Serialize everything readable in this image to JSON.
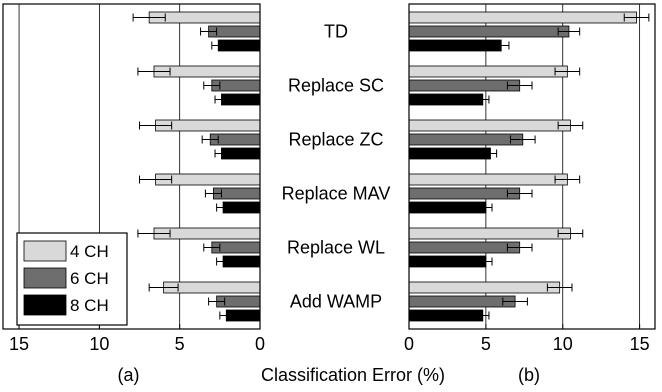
{
  "chart_data": [
    {
      "panel_label": "(a)",
      "type": "bar",
      "orientation": "horizontal",
      "x_direction": "reversed",
      "xlim": [
        0,
        16
      ],
      "xticks": [
        "15",
        "10",
        "5",
        "0"
      ],
      "xtick_values": [
        15,
        10,
        5,
        0
      ],
      "gridlines_x": [
        15,
        10,
        5
      ],
      "categories": [
        "TD",
        "Replace SC",
        "Replace ZC",
        "Replace MAV",
        "Replace WL",
        "Add WAMP"
      ],
      "series": [
        {
          "name": "4 CH",
          "color": "#d9d9d9",
          "values": [
            6.9,
            6.6,
            6.5,
            6.5,
            6.6,
            6.0
          ],
          "errors": [
            1.0,
            1.0,
            1.0,
            1.0,
            1.0,
            0.9
          ]
        },
        {
          "name": "6 CH",
          "color": "#6e6e6e",
          "values": [
            3.2,
            3.0,
            3.1,
            2.9,
            3.0,
            2.7
          ],
          "errors": [
            0.5,
            0.5,
            0.5,
            0.5,
            0.5,
            0.5
          ]
        },
        {
          "name": "8 CH",
          "color": "#000000",
          "values": [
            2.6,
            2.4,
            2.4,
            2.3,
            2.3,
            2.1
          ],
          "errors": [
            0.4,
            0.4,
            0.4,
            0.4,
            0.4,
            0.4
          ]
        }
      ],
      "legend": "bottom-left",
      "grid": true
    },
    {
      "panel_label": "(b)",
      "type": "bar",
      "orientation": "horizontal",
      "xlim": [
        0,
        16
      ],
      "xticks": [
        "0",
        "5",
        "10",
        "15"
      ],
      "xtick_values": [
        0,
        5,
        10,
        15
      ],
      "gridlines_x": [
        5,
        10,
        15
      ],
      "categories": [
        "TD",
        "Replace SC",
        "Replace ZC",
        "Replace MAV",
        "Replace WL",
        "Add WAMP"
      ],
      "series": [
        {
          "name": "4 CH",
          "color": "#d9d9d9",
          "values": [
            14.8,
            10.3,
            10.5,
            10.3,
            10.5,
            9.8
          ],
          "errors": [
            0.8,
            0.8,
            0.8,
            0.8,
            0.8,
            0.8
          ]
        },
        {
          "name": "6 CH",
          "color": "#6e6e6e",
          "values": [
            10.4,
            7.2,
            7.4,
            7.2,
            7.2,
            6.9
          ],
          "errors": [
            0.7,
            0.8,
            0.8,
            0.8,
            0.8,
            0.8
          ]
        },
        {
          "name": "8 CH",
          "color": "#000000",
          "values": [
            6.0,
            4.8,
            5.3,
            5.0,
            5.0,
            4.8
          ],
          "errors": [
            0.5,
            0.4,
            0.4,
            0.4,
            0.4,
            0.4
          ]
        }
      ],
      "grid": true
    }
  ],
  "xlabel": "Classification Error (%)"
}
